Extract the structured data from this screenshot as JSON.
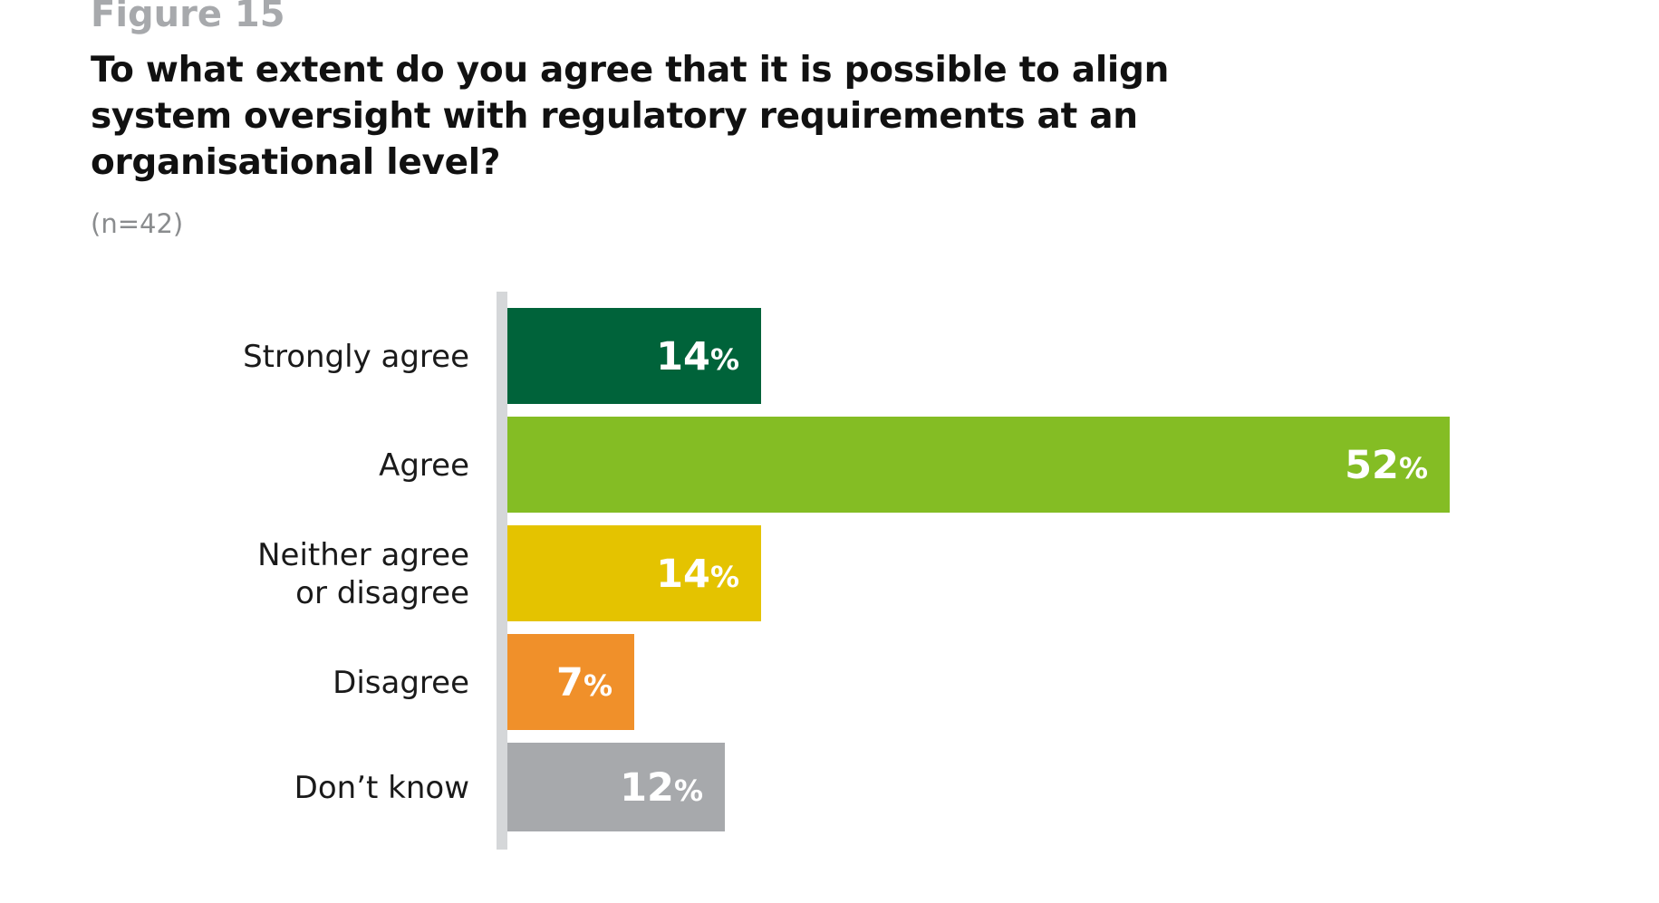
{
  "figure_label": "Figure 15",
  "title": "To what extent do you agree that it is possible to align system oversight with regulatory requirements at an organisational level?",
  "sample_size": "(n=42)",
  "chart_data": {
    "type": "bar",
    "orientation": "horizontal",
    "title": "To what extent do you agree that it is possible to align system oversight with regulatory requirements at an organisational level?",
    "subtitle": "(n=42)",
    "categories": [
      [
        "Strongly agree"
      ],
      [
        "Agree"
      ],
      [
        "Neither agree",
        "or disagree"
      ],
      [
        "Disagree"
      ],
      [
        "Don’t know"
      ]
    ],
    "values": [
      14,
      52,
      14,
      7,
      12
    ],
    "value_suffix": "%",
    "colors": [
      "#00633a",
      "#84bd24",
      "#e4c300",
      "#f0902a",
      "#a7a9ac"
    ],
    "axis_color": "#d5d7d9",
    "xlim": [
      0,
      52
    ],
    "grid": false,
    "legend": "none"
  }
}
